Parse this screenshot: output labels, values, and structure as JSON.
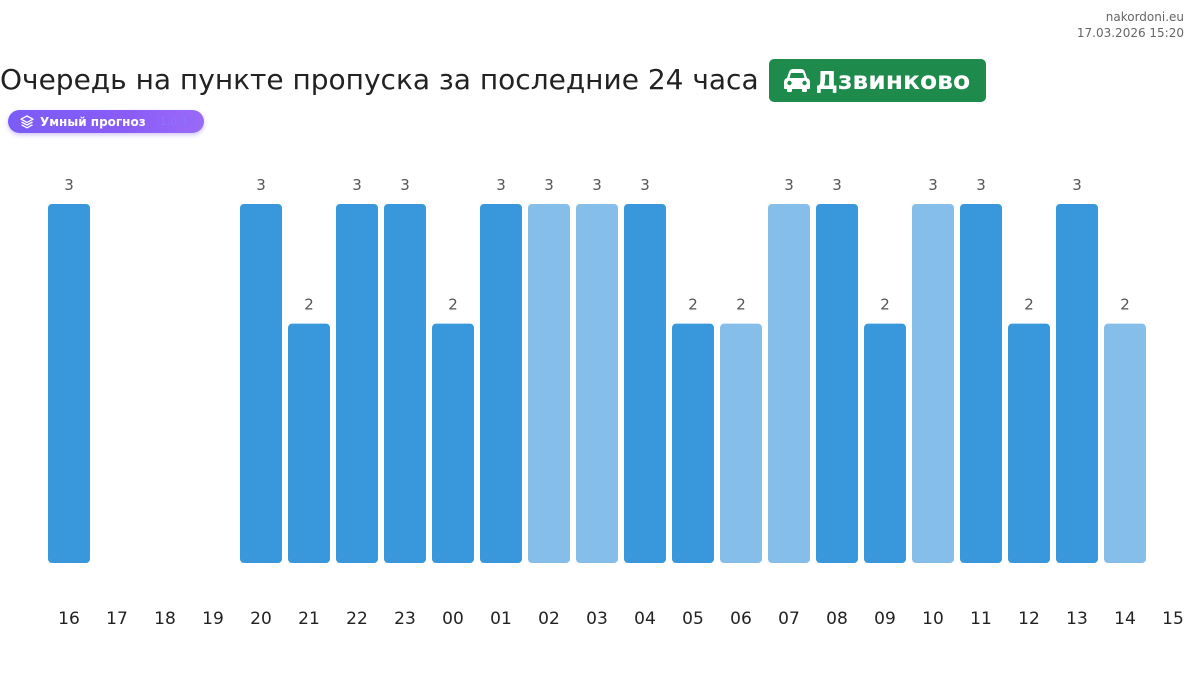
{
  "site": {
    "domain": "nakordoni.eu",
    "timestamp": "17.03.2026 15:20"
  },
  "header": {
    "title": "Очередь на пункте пропуска за последние 24 часа",
    "checkpoint": "Дзвинково",
    "checkpoint_icon": "car-icon",
    "badge_color": "#1e8a4c"
  },
  "forecast": {
    "label": "Умный прогноз",
    "icon": "layers-icon",
    "tag": "1.0.1"
  },
  "chart_data": {
    "type": "bar",
    "categories": [
      "16",
      "17",
      "18",
      "19",
      "20",
      "21",
      "22",
      "23",
      "00",
      "01",
      "02",
      "03",
      "04",
      "05",
      "06",
      "07",
      "08",
      "09",
      "10",
      "11",
      "12",
      "13",
      "14",
      "15"
    ],
    "values": [
      3,
      null,
      null,
      null,
      3,
      2,
      3,
      3,
      2,
      3,
      3,
      3,
      3,
      2,
      2,
      3,
      3,
      2,
      3,
      3,
      2,
      3,
      2,
      null
    ],
    "forecast": [
      false,
      false,
      false,
      false,
      false,
      false,
      false,
      false,
      false,
      false,
      true,
      true,
      false,
      false,
      true,
      true,
      false,
      false,
      true,
      false,
      false,
      false,
      true,
      false
    ],
    "colors": {
      "actual": "#3898db",
      "forecast": "#85bfe9"
    },
    "ylim": [
      0,
      3
    ],
    "title": "",
    "xlabel": "",
    "ylabel": "",
    "grid": false,
    "legend": "none"
  }
}
